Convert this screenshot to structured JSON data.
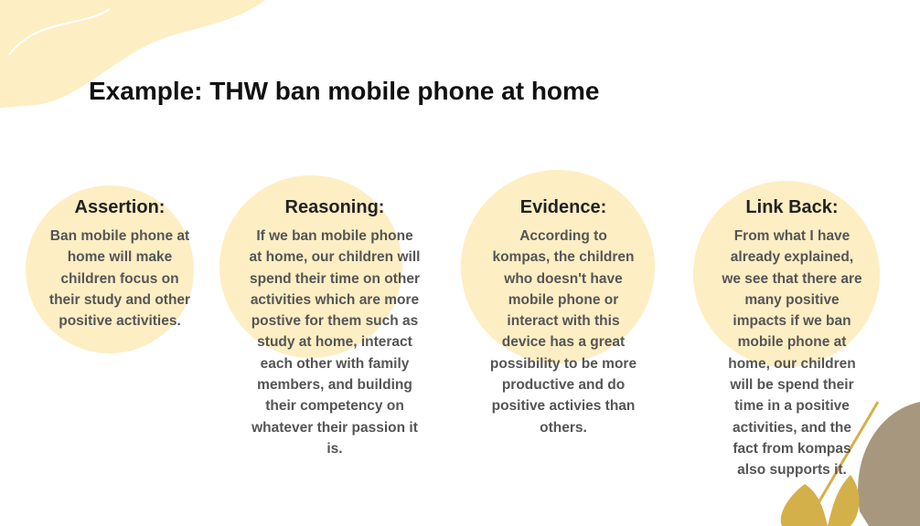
{
  "title": "Example: THW ban mobile phone at home",
  "columns": [
    {
      "heading": "Assertion:",
      "lines": [
        "Ban mobile phone at",
        "home will make",
        "children focus on",
        "their study and other",
        "positive activities."
      ]
    },
    {
      "heading": "Reasoning:",
      "lines": [
        "If we ban mobile phone",
        "at home, our children will",
        "spend their time on other",
        "activities which are more",
        "postive for them such as",
        "study at home, interact",
        "each other with family",
        "members, and building",
        "their competency on",
        "whatever their passion it",
        "is."
      ]
    },
    {
      "heading": "Evidence:",
      "lines": [
        "According to",
        "kompas, the children",
        "who doesn't have",
        "mobile phone or",
        "interact with this",
        "device has a great",
        "possibility to be more",
        "productive and do",
        "positive activies than",
        "others."
      ]
    },
    {
      "heading": "Link Back:",
      "lines": [
        "From what I have",
        "already explained,",
        "we see that there are",
        "many positive",
        "impacts if we ban",
        "mobile phone at",
        "home, our children",
        "will be spend their",
        "time in a positive",
        "activities, and the",
        "fact from kompas",
        "also supports it."
      ]
    }
  ]
}
